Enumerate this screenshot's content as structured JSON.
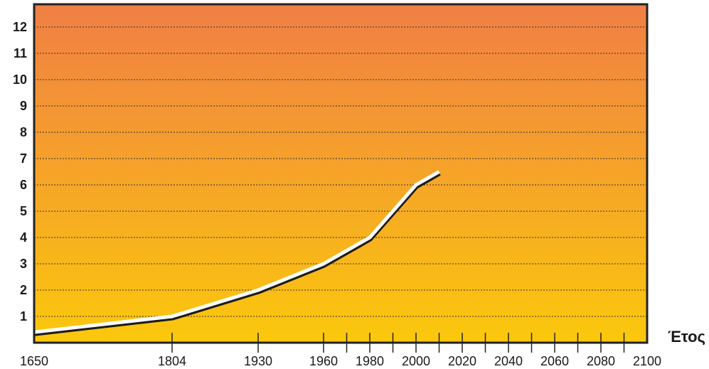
{
  "chart_data": {
    "type": "line",
    "title": "",
    "xlabel": "Έτος",
    "ylabel": "",
    "xlim": [
      1650,
      2100
    ],
    "ylim": [
      0,
      12.5
    ],
    "x_ticks": [
      1650,
      1804,
      1930,
      1960,
      1980,
      2000,
      2020,
      2040,
      2060,
      2080,
      2100
    ],
    "x_tick_labels": [
      "1650",
      "1804",
      "1930",
      "1960",
      "1980",
      "2000",
      "2020",
      "2040",
      "2060",
      "2080",
      "2100"
    ],
    "x_minor_ticks": [
      1970,
      1990,
      2010,
      2030,
      2050,
      2070,
      2090
    ],
    "y_ticks": [
      1,
      2,
      3,
      4,
      5,
      6,
      7,
      8,
      9,
      10,
      11,
      12
    ],
    "y_tick_labels": [
      "1",
      "2",
      "3",
      "4",
      "5",
      "6",
      "7",
      "8",
      "9",
      "10",
      "11",
      "12"
    ],
    "grid": "horizontal dotted",
    "background_gradient": [
      "#f07f45",
      "#fbc80c"
    ],
    "series": [
      {
        "x": [
          1650,
          1804,
          1930,
          1960,
          1980,
          2000,
          2010
        ],
        "y": [
          0.4,
          1,
          2,
          3,
          4,
          6,
          6.5
        ],
        "color": "#ffffff"
      }
    ]
  }
}
